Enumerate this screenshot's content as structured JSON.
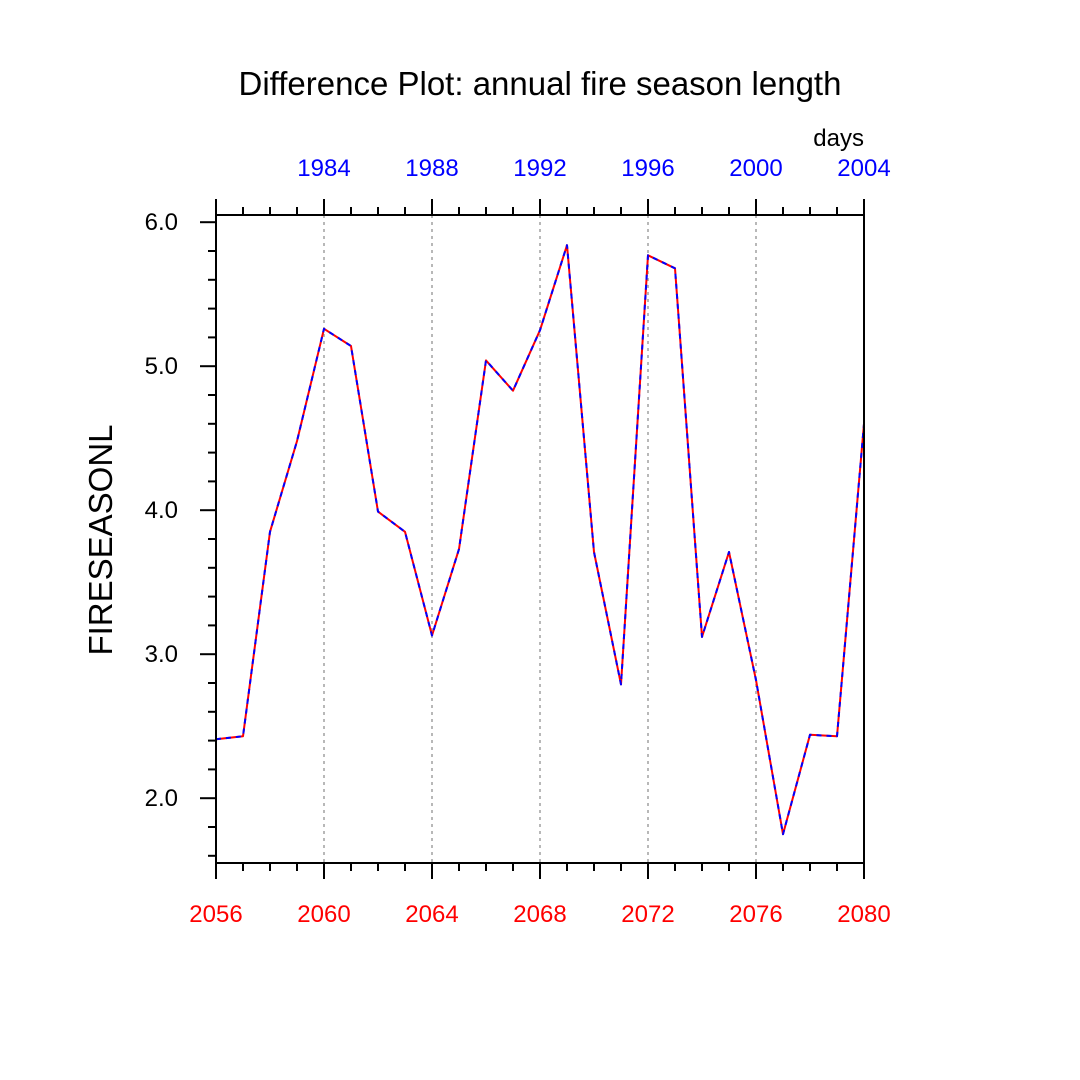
{
  "colors": {
    "background": "#ffffff",
    "axis": "#000000",
    "grid": "#a0a0a0",
    "bottom_tick_labels": "#ff0000",
    "top_tick_labels": "#0000ff",
    "series_solid": "#ff0000",
    "series_dash": "#0000ff"
  },
  "chart_data": {
    "type": "line",
    "title": "Difference Plot: annual fire season length",
    "units": "days",
    "ylabel": "FIRESEASONL",
    "xlabel": "",
    "xlim": [
      2056,
      2080
    ],
    "ylim": [
      1.55,
      6.05
    ],
    "grid": "vertical-dotted",
    "bottom_axis_ticks": [
      2056,
      2060,
      2064,
      2068,
      2072,
      2076,
      2080
    ],
    "bottom_axis_labels": [
      "2056",
      "2060",
      "2064",
      "2068",
      "2072",
      "2076",
      "2080"
    ],
    "top_axis_labels": [
      "1984",
      "1988",
      "1992",
      "1996",
      "2000",
      "2004"
    ],
    "top_axis_positions": [
      2060,
      2064,
      2068,
      2072,
      2076,
      2080
    ],
    "y_ticks": [
      2.0,
      3.0,
      4.0,
      5.0,
      6.0
    ],
    "y_tick_labels": [
      "2.0",
      "3.0",
      "4.0",
      "5.0",
      "6.0"
    ],
    "x": [
      2056,
      2057,
      2058,
      2059,
      2060,
      2061,
      2062,
      2063,
      2064,
      2065,
      2066,
      2067,
      2068,
      2069,
      2070,
      2071,
      2072,
      2073,
      2074,
      2075,
      2076,
      2077,
      2078,
      2079,
      2080
    ],
    "series": [
      {
        "name": "FIRESEASONL difference",
        "style": "red solid with blue dashes overlaid",
        "values": [
          2.41,
          2.43,
          3.85,
          4.48,
          5.26,
          5.14,
          3.99,
          3.85,
          3.13,
          3.73,
          5.04,
          4.83,
          5.25,
          5.84,
          3.71,
          2.79,
          5.77,
          5.68,
          3.12,
          3.71,
          2.82,
          1.75,
          2.44,
          2.43,
          4.6
        ]
      }
    ]
  }
}
